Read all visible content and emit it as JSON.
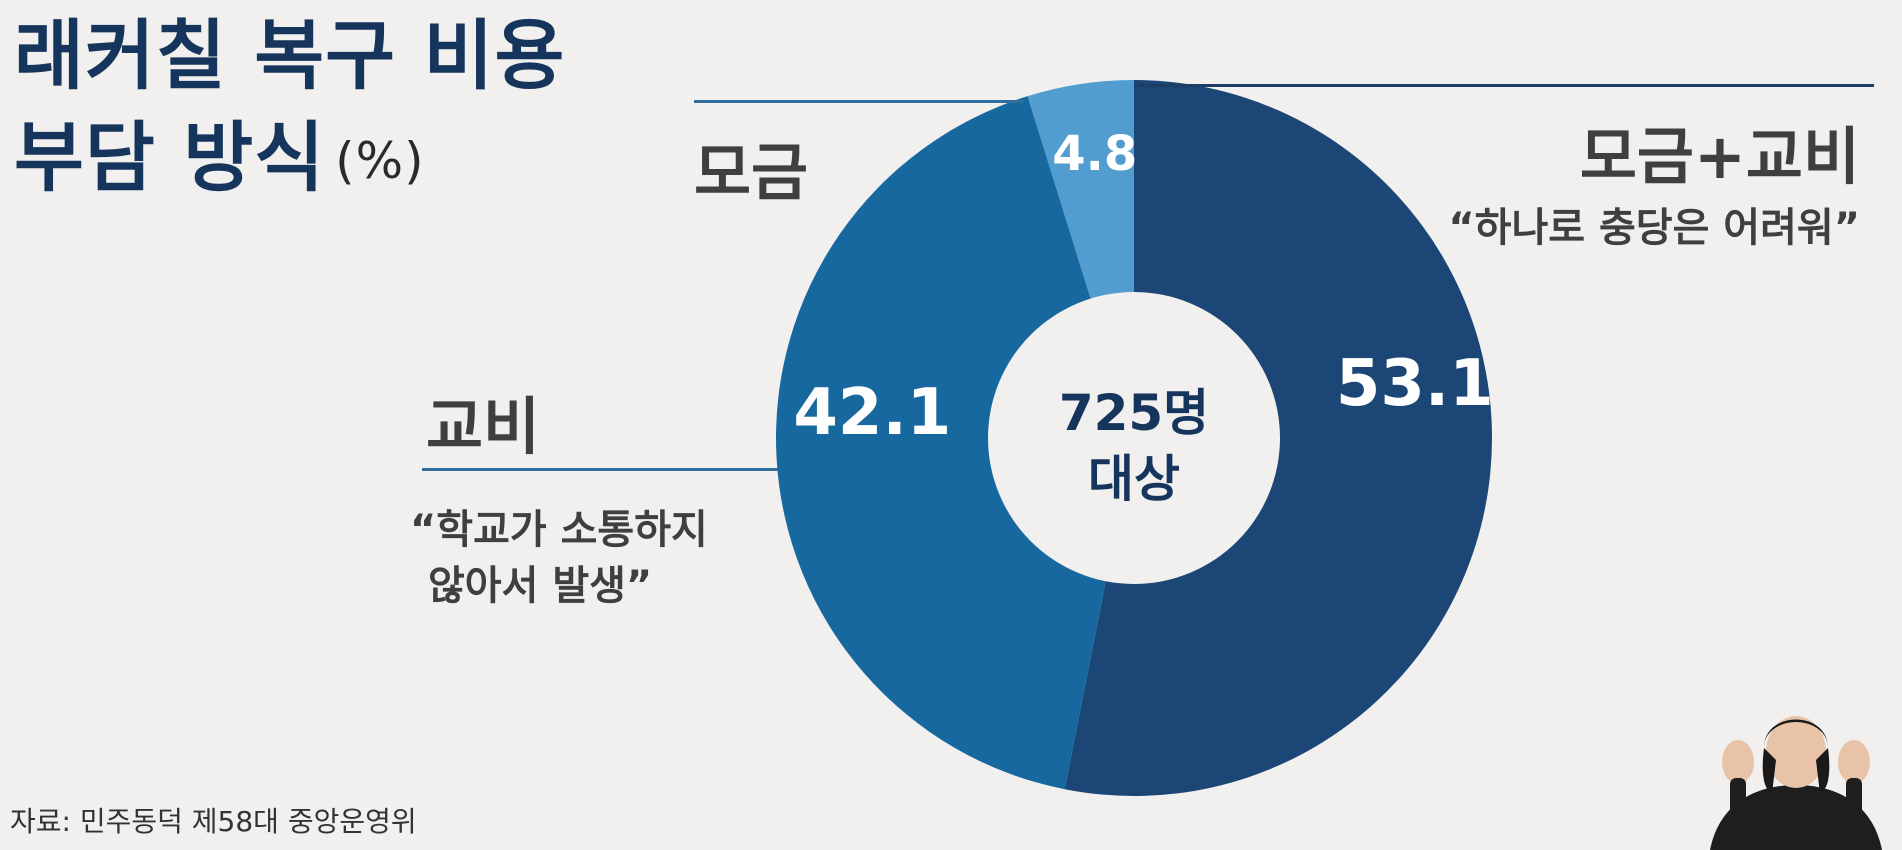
{
  "title": {
    "line1": "래커칠 복구 비용",
    "line2": "부담 방식",
    "unit": "(%)"
  },
  "chart_data": {
    "type": "pie",
    "donut": true,
    "center_label": {
      "line1": "725명",
      "line2": "대상"
    },
    "slices": [
      {
        "name": "모금+교비",
        "value": 53.1,
        "label": "53.1",
        "color": "#1b4676"
      },
      {
        "name": "교비",
        "value": 42.1,
        "label": "42.1",
        "color": "#17689f"
      },
      {
        "name": "모금",
        "value": 4.8,
        "label": "4.8",
        "color": "#529dd0"
      }
    ]
  },
  "annotations": {
    "fundraising_combined": {
      "label": "모금+교비",
      "quote": "“하나로 충당은 어려워”"
    },
    "fundraising": {
      "label": "모금"
    },
    "school_budget": {
      "label": "교비",
      "quote_line1": "“학교가 소통하지",
      "quote_line2": "않아서 발생”"
    }
  },
  "source": "자료: 민주동덕 제58대 중앙운영위"
}
